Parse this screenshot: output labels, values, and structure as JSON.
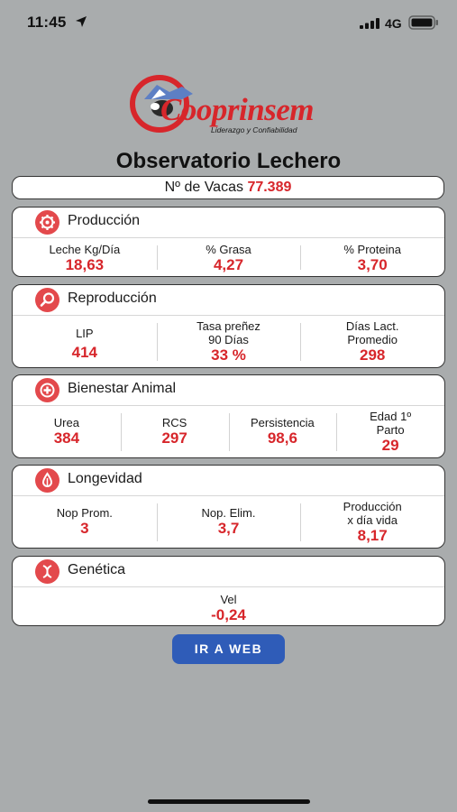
{
  "status_bar": {
    "time": "11:45",
    "network": "4G"
  },
  "logo": {
    "name": "Cooprinsem",
    "tagline": "Liderazgo y Confiabilidad"
  },
  "title": "Observatorio Lechero",
  "vacas": {
    "label": "Nº de Vacas",
    "value": "77.389"
  },
  "sections": {
    "produccion": {
      "title": "Producción",
      "icon": "gear-icon",
      "metrics": [
        {
          "label": "Leche Kg/Día",
          "value": "18,63"
        },
        {
          "label": "% Grasa",
          "value": "4,27"
        },
        {
          "label": "% Proteina",
          "value": "3,70"
        }
      ]
    },
    "reproduccion": {
      "title": "Reproducción",
      "icon": "search-icon",
      "metrics": [
        {
          "label": "LIP",
          "value": "414"
        },
        {
          "label": "Tasa preñez\n90 Días",
          "value": "33 %"
        },
        {
          "label": "Días Lact.\nPromedio",
          "value": "298"
        }
      ]
    },
    "bienestar": {
      "title": "Bienestar Animal",
      "icon": "plus-icon",
      "metrics": [
        {
          "label": "Urea",
          "value": "384"
        },
        {
          "label": "RCS",
          "value": "297"
        },
        {
          "label": "Persistencia",
          "value": "98,6"
        },
        {
          "label": "Edad 1º\nParto",
          "value": "29"
        }
      ]
    },
    "longevidad": {
      "title": "Longevidad",
      "icon": "drop-icon",
      "metrics": [
        {
          "label": "Nop Prom.",
          "value": "3"
        },
        {
          "label": "Nop. Elim.",
          "value": "3,7"
        },
        {
          "label": "Producción\nx día vida",
          "value": "8,17"
        }
      ]
    },
    "genetica": {
      "title": "Genética",
      "icon": "dna-icon",
      "metrics": [
        {
          "label": "Vel",
          "value": "-0,24"
        }
      ]
    }
  },
  "button": {
    "label": "IR A WEB"
  },
  "colors": {
    "accent": "#d7262b",
    "button": "#2f5cb8",
    "background": "#a9acad"
  }
}
